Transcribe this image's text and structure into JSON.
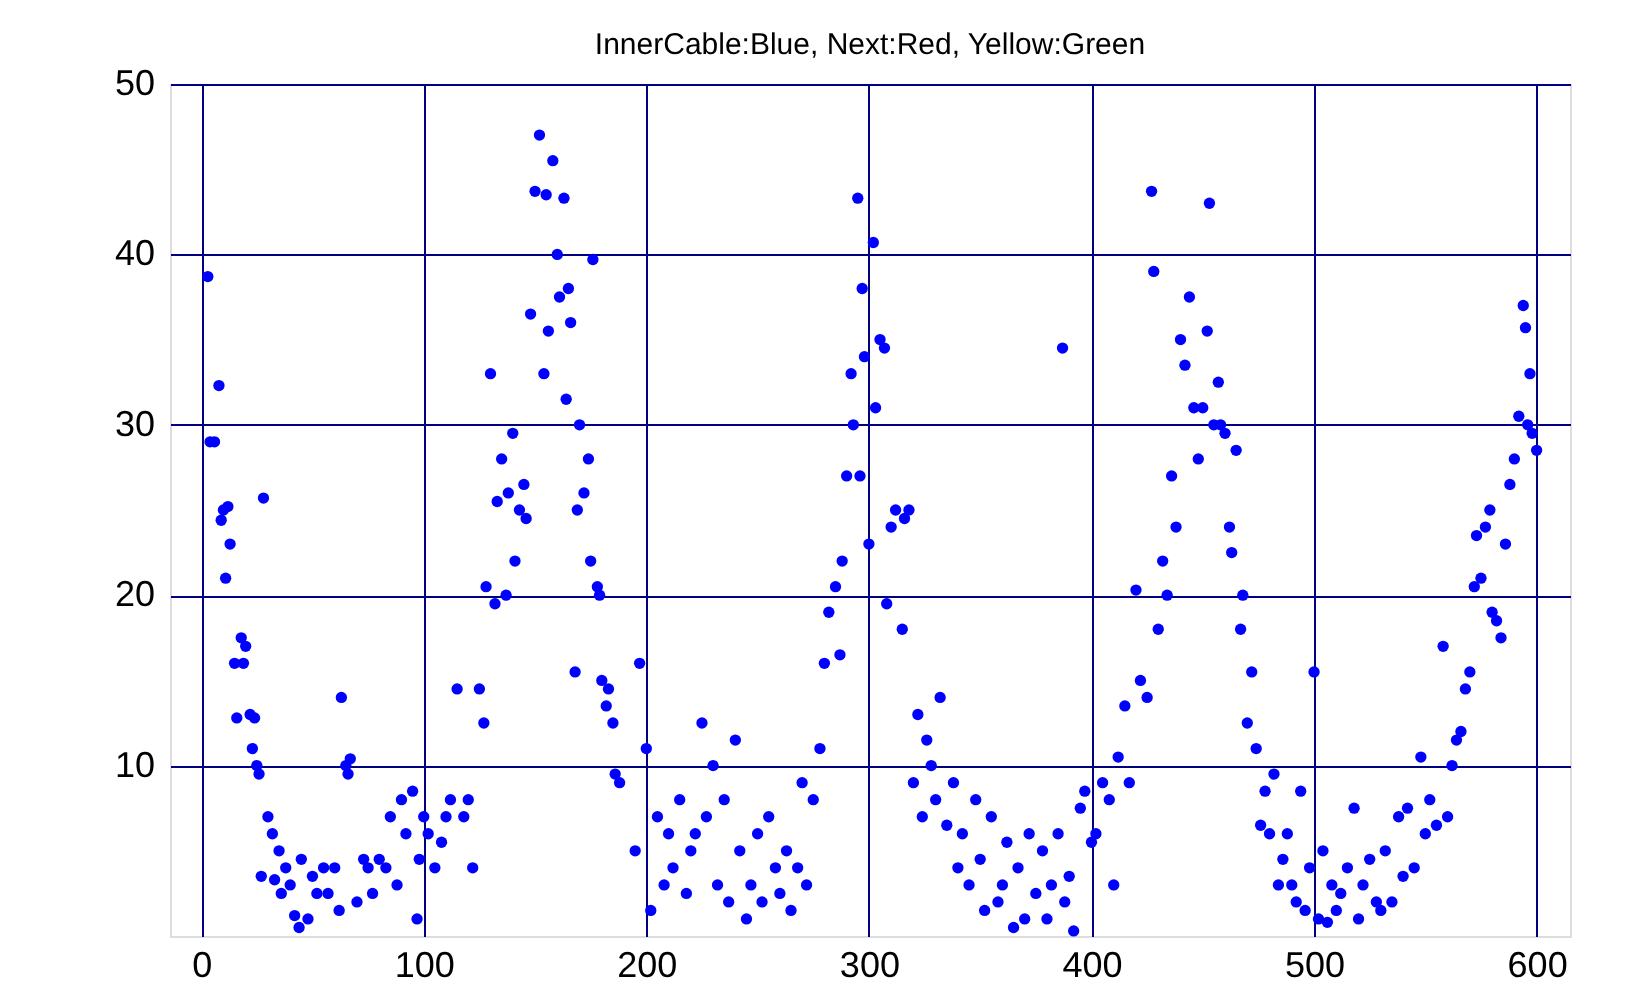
{
  "chart_data": {
    "type": "scatter",
    "title": "InnerCable:Blue, Next:Red, Yellow:Green",
    "xlim": [
      -14,
      615
    ],
    "xticks": [
      0,
      100,
      200,
      300,
      400,
      500,
      600
    ],
    "ylim": [
      0,
      50
    ],
    "yticks": [
      10,
      20,
      30,
      40,
      50
    ],
    "grid": true,
    "marker": "circle",
    "series": [
      {
        "color": "#0000ff",
        "x": [
          3,
          4,
          6,
          8,
          9,
          10,
          11,
          12,
          13,
          15,
          16,
          18,
          19,
          20,
          22,
          23,
          24,
          25,
          26,
          28,
          27,
          30,
          32,
          33,
          35,
          36,
          38,
          40,
          42,
          44,
          45,
          48,
          50,
          52,
          55,
          57,
          60,
          62,
          63,
          65,
          66,
          67,
          70,
          73,
          75,
          77,
          80,
          83,
          85,
          88,
          90,
          92,
          95,
          97,
          98,
          100,
          102,
          105,
          108,
          110,
          112,
          118,
          120,
          122,
          115,
          125,
          127,
          128,
          130,
          132,
          133,
          135,
          137,
          138,
          140,
          141,
          143,
          145,
          146,
          148,
          150,
          152,
          154,
          155,
          156,
          158,
          160,
          161,
          163,
          164,
          165,
          166,
          168,
          169,
          170,
          172,
          174,
          175,
          176,
          178,
          179,
          180,
          182,
          183,
          185,
          186,
          188,
          195,
          197,
          200,
          202,
          205,
          208,
          210,
          212,
          215,
          218,
          220,
          222,
          225,
          227,
          230,
          232,
          235,
          237,
          240,
          242,
          245,
          247,
          250,
          252,
          255,
          258,
          260,
          263,
          265,
          268,
          270,
          272,
          275,
          278,
          280,
          282,
          285,
          287,
          288,
          290,
          292,
          293,
          295,
          296,
          297,
          298,
          300,
          302,
          303,
          305,
          307,
          308,
          310,
          312,
          315,
          316,
          318,
          320,
          322,
          324,
          326,
          328,
          330,
          332,
          335,
          338,
          340,
          342,
          345,
          348,
          350,
          352,
          355,
          358,
          360,
          362,
          365,
          367,
          370,
          372,
          375,
          378,
          380,
          382,
          385,
          387,
          388,
          390,
          392,
          395,
          397,
          400,
          402,
          405,
          408,
          410,
          412,
          415,
          417,
          420,
          422,
          425,
          427,
          428,
          430,
          432,
          434,
          436,
          438,
          440,
          442,
          444,
          446,
          448,
          450,
          452,
          453,
          455,
          457,
          458,
          460,
          462,
          463,
          465,
          467,
          468,
          470,
          472,
          474,
          476,
          478,
          480,
          482,
          484,
          486,
          488,
          490,
          492,
          494,
          496,
          498,
          500,
          502,
          504,
          506,
          508,
          510,
          512,
          515,
          518,
          520,
          522,
          525,
          528,
          530,
          532,
          535,
          538,
          540,
          542,
          545,
          548,
          550,
          552,
          555,
          558,
          560,
          562,
          564,
          566,
          568,
          570,
          572,
          573,
          575,
          577,
          579,
          580,
          582,
          584,
          586,
          588,
          590,
          592,
          594,
          595,
          596,
          597,
          598,
          600
        ],
        "values": [
          38.7,
          29,
          29,
          32.3,
          24.4,
          25,
          21,
          25.2,
          23,
          16,
          12.8,
          17.5,
          16,
          17,
          13,
          11,
          12.8,
          10,
          9.5,
          25.7,
          3.5,
          7,
          6,
          3.3,
          5,
          2.5,
          4,
          3,
          1.2,
          0.5,
          4.5,
          1,
          3.5,
          2.5,
          4,
          2.5,
          4,
          1.5,
          14,
          10,
          9.5,
          10.4,
          2,
          4.5,
          4,
          2.5,
          4.5,
          4,
          7,
          3,
          8,
          6,
          8.5,
          1,
          4.5,
          7,
          6,
          4,
          5.5,
          7,
          8,
          7,
          8,
          4,
          14.5,
          14.5,
          12.5,
          20.5,
          33,
          19.5,
          25.5,
          28,
          20,
          26,
          29.5,
          22,
          25,
          26.5,
          24.5,
          36.5,
          43.7,
          47,
          33,
          43.5,
          35.5,
          45.5,
          40,
          37.5,
          43.3,
          31.5,
          38,
          36,
          15.5,
          25,
          30,
          26,
          28,
          22,
          39.7,
          20.5,
          20,
          15,
          13.5,
          14.5,
          12.5,
          9.5,
          9,
          5,
          16,
          11,
          1.5,
          7,
          3,
          6,
          4,
          8,
          2.5,
          5,
          6,
          12.5,
          7,
          10,
          3,
          8,
          2,
          11.5,
          5,
          1,
          3,
          6,
          2,
          7,
          4,
          2.5,
          5,
          1.5,
          4,
          9,
          3,
          8,
          11,
          16,
          19,
          20.5,
          16.5,
          22,
          27,
          33,
          30,
          43.3,
          27,
          38,
          34,
          23,
          40.7,
          31,
          35,
          34.5,
          19.5,
          24,
          25,
          18,
          24.5,
          25,
          9,
          13,
          7,
          11.5,
          10,
          8,
          14,
          6.5,
          9,
          4,
          6,
          3,
          8,
          4.5,
          1.5,
          7,
          2,
          3,
          5.5,
          0.5,
          4,
          1,
          6,
          2.5,
          5,
          1,
          3,
          6,
          34.5,
          2,
          3.5,
          0.3,
          7.5,
          8.5,
          5.5,
          6,
          9,
          8,
          3,
          10.5,
          13.5,
          9,
          20.3,
          15,
          14,
          43.7,
          39,
          18,
          22,
          20,
          27,
          24,
          35,
          33.5,
          37.5,
          31,
          28,
          31,
          35.5,
          43,
          30,
          32.5,
          30,
          29.5,
          24,
          22.5,
          28.5,
          18,
          20,
          12.5,
          15.5,
          11,
          6.5,
          8.5,
          6,
          9.5,
          3,
          4.5,
          6,
          3,
          2,
          8.5,
          1.5,
          4,
          15.5,
          1,
          5,
          0.8,
          3,
          1.5,
          2.5,
          4,
          7.5,
          1,
          3,
          4.5,
          2,
          1.5,
          5,
          2,
          7,
          3.5,
          7.5,
          4,
          10.5,
          6,
          8,
          6.5,
          17,
          7,
          10,
          11.5,
          12,
          14.5,
          15.5,
          20.5,
          23.5,
          21,
          24,
          25,
          19,
          18.5,
          17.5,
          23,
          26.5,
          28,
          30.5,
          37,
          35.7,
          30,
          33,
          29.5,
          28.5
        ]
      }
    ]
  }
}
